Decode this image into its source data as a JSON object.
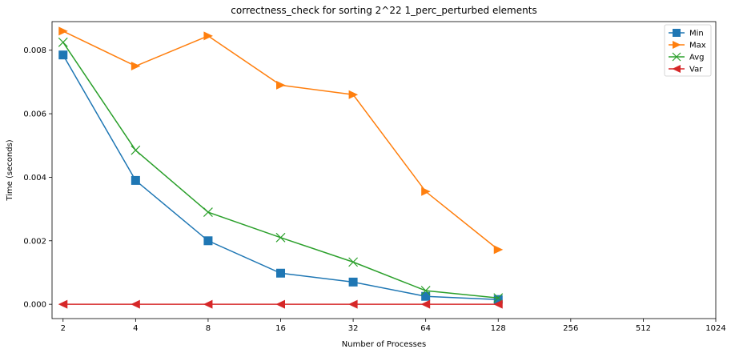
{
  "chart_data": {
    "type": "line",
    "title": "correctness_check for sorting 2^22 1_perc_perturbed elements",
    "xlabel": "Number of Processes",
    "ylabel": "Time (seconds)",
    "x_scale": "log2",
    "xlim": [
      1.8,
      1024
    ],
    "ylim": [
      -0.00045,
      0.0089
    ],
    "x_ticks": [
      2,
      4,
      8,
      16,
      32,
      64,
      128,
      256,
      512,
      1024
    ],
    "x_tick_labels": [
      "2",
      "4",
      "8",
      "16",
      "32",
      "64",
      "128",
      "256",
      "512",
      "1024"
    ],
    "y_ticks": [
      0.0,
      0.002,
      0.004,
      0.006,
      0.008
    ],
    "y_tick_labels": [
      "0.000",
      "0.002",
      "0.004",
      "0.006",
      "0.008"
    ],
    "grid": false,
    "legend_position": "top-right",
    "x": [
      2,
      4,
      8,
      16,
      32,
      64,
      128
    ],
    "series": [
      {
        "name": "Min",
        "marker": "square",
        "color": "#1f77b4",
        "values": [
          0.00785,
          0.0039,
          0.002,
          0.00098,
          0.0007,
          0.00025,
          0.00015
        ]
      },
      {
        "name": "Max",
        "marker": "triangle-right",
        "color": "#ff7f0e",
        "values": [
          0.0086,
          0.0075,
          0.00845,
          0.0069,
          0.0066,
          0.00355,
          0.00172
        ]
      },
      {
        "name": "Avg",
        "marker": "x",
        "color": "#2ca02c",
        "values": [
          0.00825,
          0.00485,
          0.0029,
          0.0021,
          0.00133,
          0.00043,
          0.0002
        ]
      },
      {
        "name": "Var",
        "marker": "triangle-left",
        "color": "#d62728",
        "values": [
          0.0,
          0.0,
          0.0,
          0.0,
          0.0,
          0.0,
          0.0
        ]
      }
    ]
  }
}
